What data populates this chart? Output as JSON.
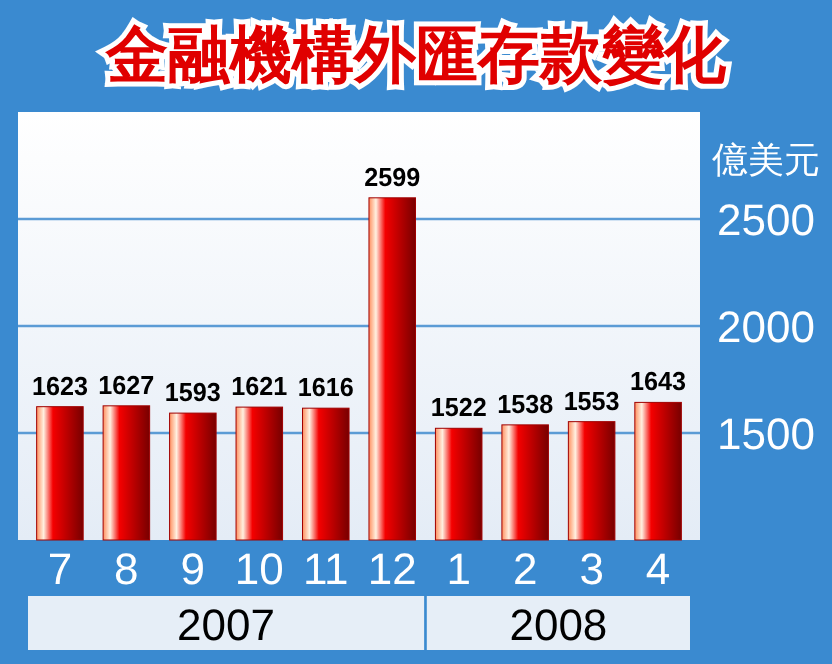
{
  "chart_data": {
    "type": "bar",
    "title": "金融機構外匯存款變化",
    "ylabel": "億美元",
    "categories": [
      "7",
      "8",
      "9",
      "10",
      "11",
      "12",
      "1",
      "2",
      "3",
      "4"
    ],
    "values": [
      1623,
      1627,
      1593,
      1621,
      1616,
      2599,
      1522,
      1538,
      1553,
      1643
    ],
    "color": "#a00000",
    "ylim": [
      1000,
      3000
    ],
    "yticks": [
      1500,
      2000,
      2500
    ],
    "grid": "y",
    "data_labels": true,
    "annotations": [
      "2007",
      "2008"
    ]
  }
}
